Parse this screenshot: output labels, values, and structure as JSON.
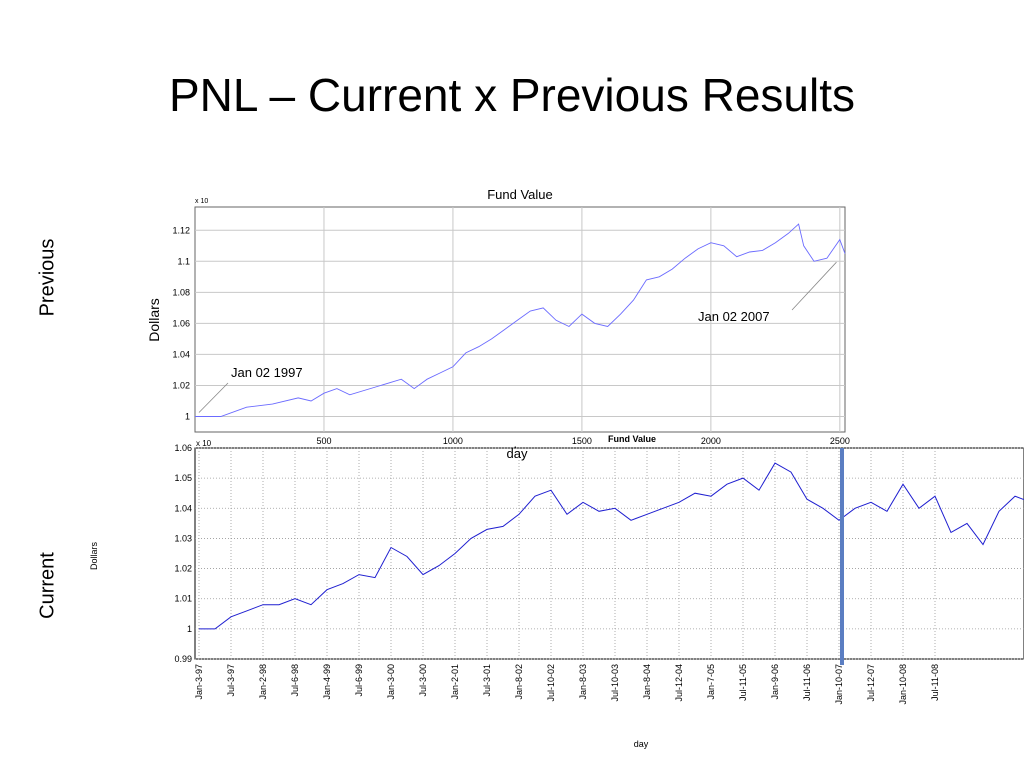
{
  "slide": {
    "title": "PNL – Current x Previous Results",
    "label_previous": "Previous",
    "label_current": "Current"
  },
  "colors": {
    "series": "#1f1fd0",
    "marker": "#5b7ec2",
    "grid": "#c8c8c8",
    "axis": "#000000"
  },
  "chart_data": [
    {
      "type": "line",
      "title": "Fund Value",
      "xlabel": "day",
      "ylabel": "Dollars",
      "yscale_note": "x 10^6",
      "xlim": [
        0,
        2520
      ],
      "ylim": [
        0.99,
        1.135
      ],
      "xticks": [
        500,
        1000,
        1500,
        2000,
        2500
      ],
      "yticks": [
        "1",
        "1.02",
        "1.04",
        "1.06",
        "1.08",
        "1.1",
        "1.12"
      ],
      "grid": true,
      "annotations": [
        {
          "text": "Jan 02 1997",
          "x": 0,
          "y": 1.0
        },
        {
          "text": "Jan 02 2007",
          "x": 2510,
          "y": 1.102
        }
      ],
      "series": [
        {
          "values": [
            [
              0,
              1.0
            ],
            [
              100,
              1.0
            ],
            [
              200,
              1.006
            ],
            [
              300,
              1.008
            ],
            [
              400,
              1.012
            ],
            [
              450,
              1.01
            ],
            [
              500,
              1.015
            ],
            [
              550,
              1.018
            ],
            [
              600,
              1.014
            ],
            [
              700,
              1.019
            ],
            [
              800,
              1.024
            ],
            [
              850,
              1.018
            ],
            [
              900,
              1.024
            ],
            [
              950,
              1.028
            ],
            [
              1000,
              1.032
            ],
            [
              1050,
              1.041
            ],
            [
              1100,
              1.045
            ],
            [
              1150,
              1.05
            ],
            [
              1200,
              1.056
            ],
            [
              1250,
              1.062
            ],
            [
              1300,
              1.068
            ],
            [
              1350,
              1.07
            ],
            [
              1400,
              1.062
            ],
            [
              1450,
              1.058
            ],
            [
              1500,
              1.066
            ],
            [
              1550,
              1.06
            ],
            [
              1600,
              1.058
            ],
            [
              1650,
              1.066
            ],
            [
              1700,
              1.075
            ],
            [
              1750,
              1.088
            ],
            [
              1800,
              1.09
            ],
            [
              1850,
              1.095
            ],
            [
              1900,
              1.102
            ],
            [
              1950,
              1.108
            ],
            [
              2000,
              1.112
            ],
            [
              2050,
              1.11
            ],
            [
              2100,
              1.103
            ],
            [
              2150,
              1.106
            ],
            [
              2200,
              1.107
            ],
            [
              2250,
              1.112
            ],
            [
              2300,
              1.118
            ],
            [
              2340,
              1.124
            ],
            [
              2360,
              1.11
            ],
            [
              2400,
              1.1
            ],
            [
              2450,
              1.102
            ],
            [
              2500,
              1.114
            ],
            [
              2520,
              1.105
            ]
          ]
        }
      ]
    },
    {
      "type": "line",
      "title": "Fund Value",
      "xlabel": "day",
      "ylabel": "Dollars",
      "yscale_note": "x 10^6",
      "ylim": [
        0.99,
        1.06
      ],
      "yticks": [
        "0.99",
        "1",
        "1.01",
        "1.02",
        "1.03",
        "1.04",
        "1.05",
        "1.06"
      ],
      "x_tick_labels": [
        "Jan-3-97",
        "Jul-3-97",
        "Jan-2-98",
        "Jul-6-98",
        "Jan-4-99",
        "Jul-6-99",
        "Jan-3-00",
        "Jul-3-00",
        "Jan-2-01",
        "Jul-3-01",
        "Jan-8-02",
        "Jul-10-02",
        "Jan-8-03",
        "Jul-10-03",
        "Jan-8-04",
        "Jul-12-04",
        "Jan-7-05",
        "Jul-11-05",
        "Jan-9-06",
        "Jul-11-06",
        "Jan-10-07",
        "Jul-12-07",
        "Jan-10-08",
        "Jul-11-08"
      ],
      "grid": true,
      "marker_line_at": "Jan-10-07",
      "series": [
        {
          "values": [
            [
              0,
              1.0
            ],
            [
              0.5,
              1.0
            ],
            [
              1,
              1.004
            ],
            [
              1.5,
              1.006
            ],
            [
              2,
              1.008
            ],
            [
              2.5,
              1.008
            ],
            [
              3,
              1.01
            ],
            [
              3.5,
              1.008
            ],
            [
              4,
              1.013
            ],
            [
              4.5,
              1.015
            ],
            [
              5,
              1.018
            ],
            [
              5.5,
              1.017
            ],
            [
              6,
              1.027
            ],
            [
              6.5,
              1.024
            ],
            [
              7,
              1.018
            ],
            [
              7.5,
              1.021
            ],
            [
              8,
              1.025
            ],
            [
              8.5,
              1.03
            ],
            [
              9,
              1.033
            ],
            [
              9.5,
              1.034
            ],
            [
              10,
              1.038
            ],
            [
              10.5,
              1.044
            ],
            [
              11,
              1.046
            ],
            [
              11.5,
              1.038
            ],
            [
              12,
              1.042
            ],
            [
              12.5,
              1.039
            ],
            [
              13,
              1.04
            ],
            [
              13.5,
              1.036
            ],
            [
              14,
              1.038
            ],
            [
              14.5,
              1.04
            ],
            [
              15,
              1.042
            ],
            [
              15.5,
              1.045
            ],
            [
              16,
              1.044
            ],
            [
              16.5,
              1.048
            ],
            [
              17,
              1.05
            ],
            [
              17.5,
              1.046
            ],
            [
              18,
              1.055
            ],
            [
              18.5,
              1.052
            ],
            [
              19,
              1.043
            ],
            [
              19.5,
              1.04
            ],
            [
              20,
              1.036
            ],
            [
              20.5,
              1.04
            ],
            [
              21,
              1.042
            ],
            [
              21.5,
              1.039
            ],
            [
              22,
              1.048
            ],
            [
              22.5,
              1.04
            ],
            [
              23,
              1.044
            ],
            [
              23.5,
              1.032
            ],
            [
              24,
              1.035
            ],
            [
              24.5,
              1.028
            ],
            [
              25,
              1.039
            ],
            [
              25.5,
              1.044
            ],
            [
              26,
              1.042
            ]
          ]
        }
      ]
    }
  ]
}
